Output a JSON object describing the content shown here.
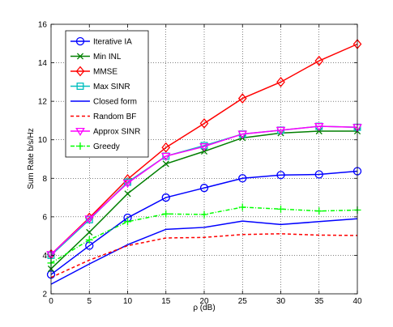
{
  "chart_data": {
    "type": "line",
    "xlabel": "ρ (dB)",
    "ylabel": "Sum Rate b/s/Hz",
    "xlim": [
      0,
      40
    ],
    "ylim": [
      2,
      16
    ],
    "xticks": [
      0,
      5,
      10,
      15,
      20,
      25,
      30,
      35,
      40
    ],
    "yticks": [
      2,
      4,
      6,
      8,
      10,
      12,
      14,
      16
    ],
    "grid": true,
    "legend_position": "top-left",
    "x": [
      0,
      5,
      10,
      15,
      20,
      25,
      30,
      35,
      40
    ],
    "series": [
      {
        "name": "Iterative IA",
        "color": "#0000ff",
        "dash": "solid",
        "marker": "circle",
        "values": [
          3.0,
          4.5,
          5.95,
          7.0,
          7.5,
          8.0,
          8.17,
          8.2,
          8.37
        ]
      },
      {
        "name": "Min INL",
        "color": "#007f00",
        "dash": "solid",
        "marker": "x",
        "values": [
          3.3,
          5.2,
          7.2,
          8.75,
          9.4,
          10.1,
          10.35,
          10.45,
          10.45
        ]
      },
      {
        "name": "MMSE",
        "color": "#ff0000",
        "dash": "solid",
        "marker": "diamond",
        "values": [
          4.05,
          5.95,
          7.95,
          9.6,
          10.85,
          12.15,
          13.0,
          14.1,
          14.97
        ]
      },
      {
        "name": "Max SINR",
        "color": "#00bfbf",
        "dash": "solid",
        "marker": "square",
        "values": [
          4.0,
          5.85,
          7.8,
          9.15,
          9.7,
          10.3,
          10.5,
          10.7,
          10.65
        ]
      },
      {
        "name": "Closed form",
        "color": "#0000ff",
        "dash": "solid",
        "marker": "none",
        "values": [
          2.5,
          3.55,
          4.55,
          5.35,
          5.45,
          5.78,
          5.6,
          5.75,
          5.9
        ]
      },
      {
        "name": "Random BF",
        "color": "#ff0000",
        "dash": "dashed",
        "marker": "none",
        "values": [
          2.85,
          3.75,
          4.5,
          4.9,
          4.93,
          5.08,
          5.12,
          5.05,
          5.03
        ]
      },
      {
        "name": "Approx SINR",
        "color": "#ff00ff",
        "dash": "solid",
        "marker": "triangle-down",
        "values": [
          4.05,
          5.9,
          7.75,
          9.15,
          9.65,
          10.3,
          10.5,
          10.7,
          10.65
        ]
      },
      {
        "name": "Greedy",
        "color": "#00ff00",
        "dash": "dashdot",
        "marker": "plus",
        "values": [
          3.6,
          4.8,
          5.75,
          6.15,
          6.12,
          6.5,
          6.4,
          6.3,
          6.35
        ]
      }
    ]
  }
}
